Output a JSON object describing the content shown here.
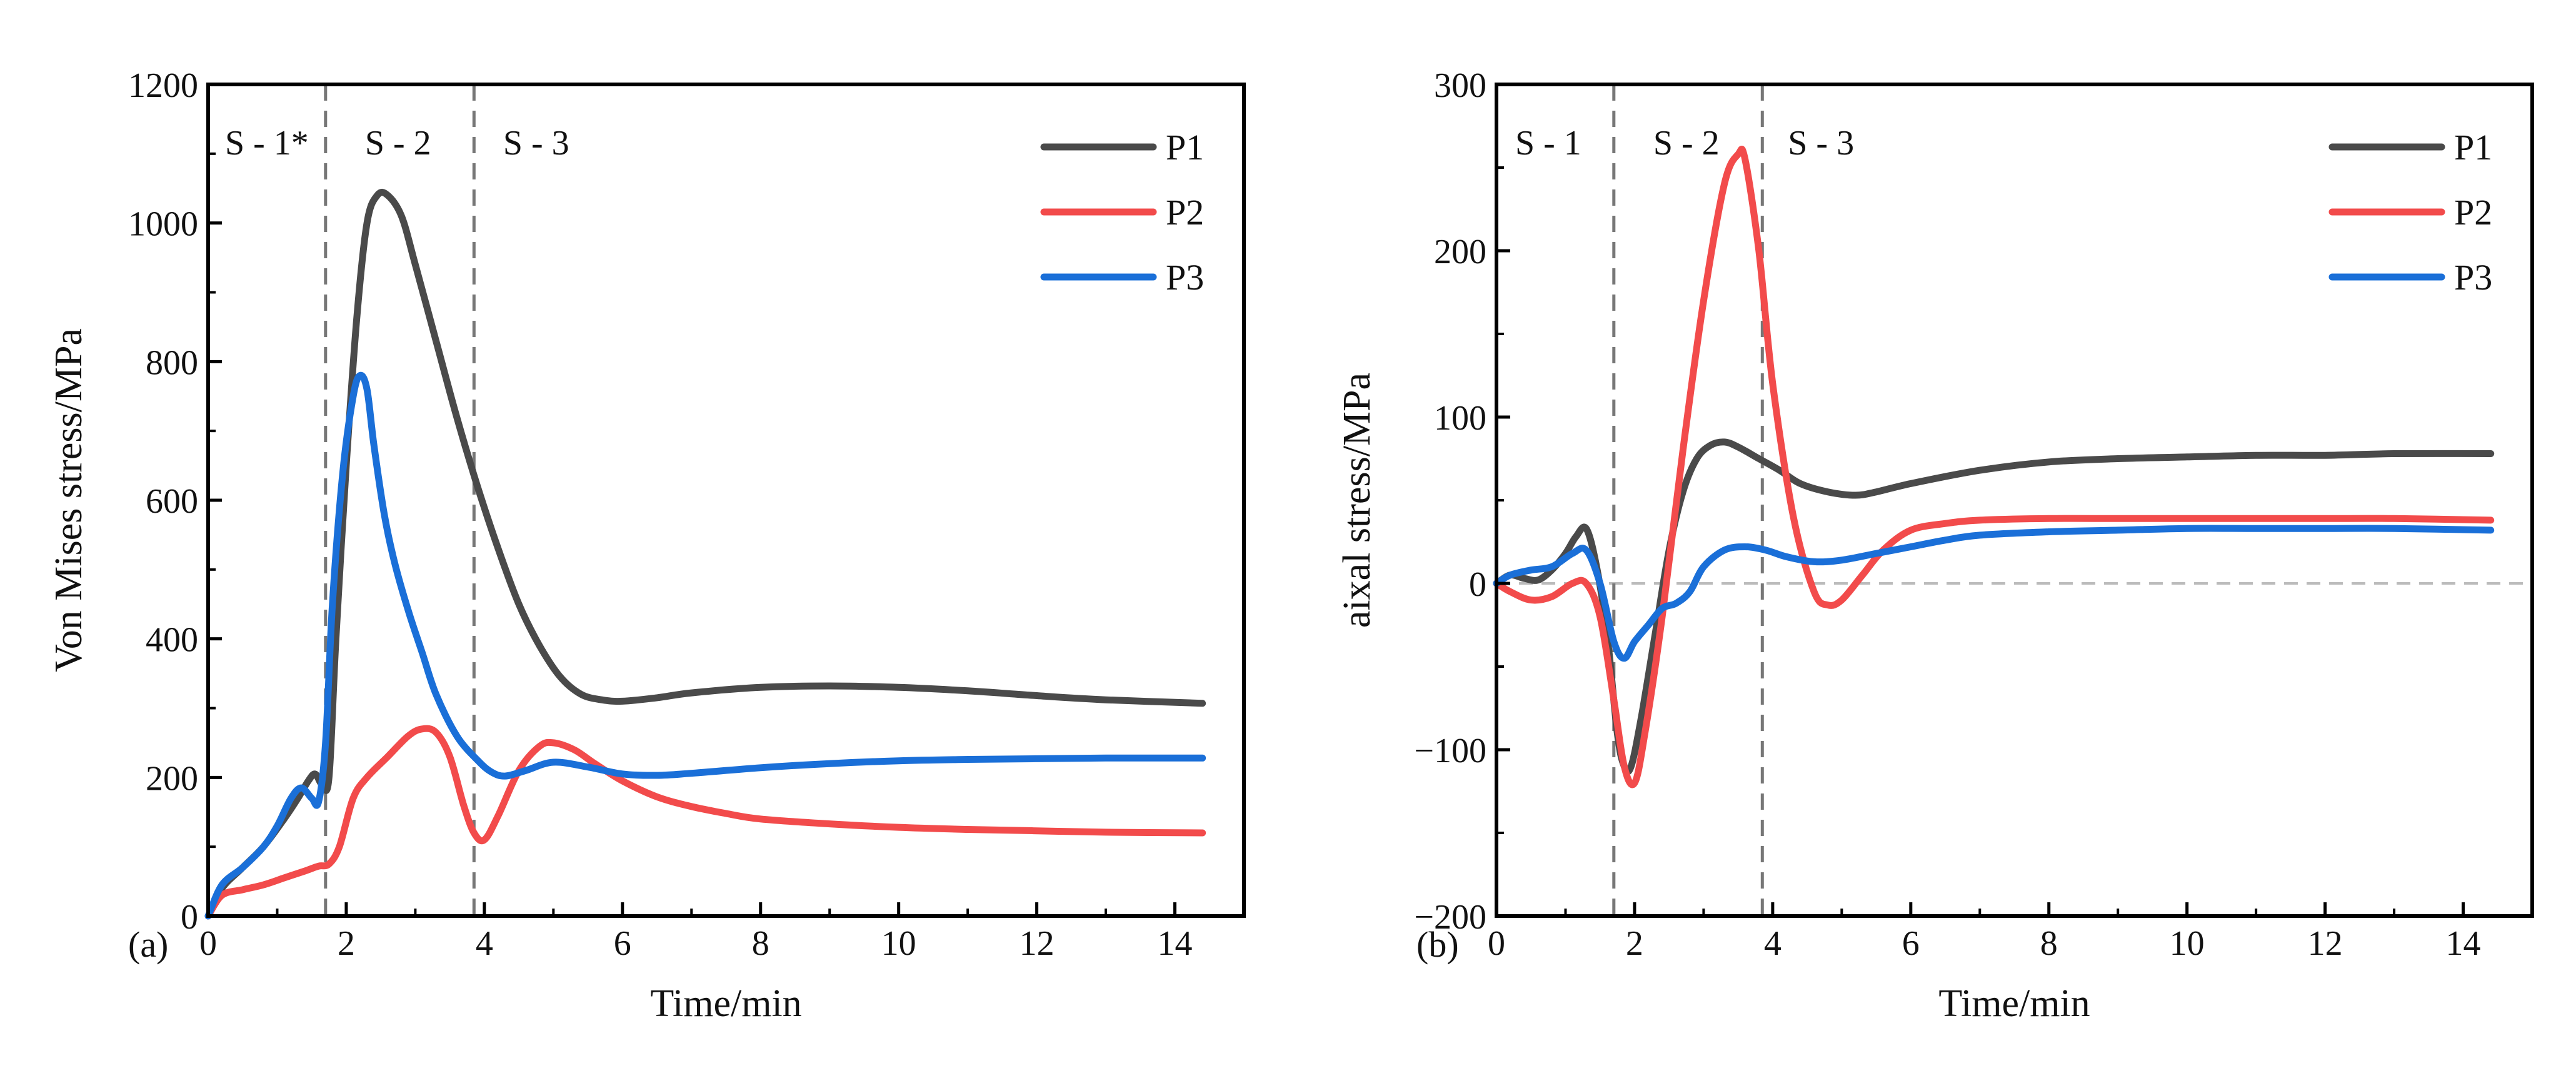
{
  "chart_data": [
    {
      "id": "chart-a",
      "panel_label": "(a)",
      "type": "line",
      "xlabel": "Time/min",
      "ylabel": "Von Mises stress/MPa",
      "xlim": [
        0,
        15
      ],
      "ylim": [
        0,
        1200
      ],
      "xticks": [
        0,
        2,
        4,
        6,
        8,
        10,
        12,
        14
      ],
      "yticks": [
        0,
        200,
        400,
        600,
        800,
        1000,
        1200
      ],
      "xtick_labels": [
        "0",
        "2",
        "4",
        "6",
        "8",
        "10",
        "12",
        "14"
      ],
      "ytick_labels": [
        "0",
        "200",
        "400",
        "600",
        "800",
        "1000",
        "1200"
      ],
      "stage_boundaries": [
        1.7,
        3.85
      ],
      "stage_labels": [
        {
          "text": "S - 1*",
          "x": 0.85
        },
        {
          "text": "S - 2",
          "x": 2.75
        },
        {
          "text": "S - 3",
          "x": 4.75
        }
      ],
      "zero_line": false,
      "legend": "top-right",
      "series": [
        {
          "name": "P1",
          "color": "#4a4a4a",
          "x": [
            0,
            0.2,
            0.5,
            0.8,
            1.1,
            1.3,
            1.45,
            1.55,
            1.65,
            1.75,
            1.85,
            2.0,
            2.15,
            2.3,
            2.45,
            2.6,
            2.8,
            3.0,
            3.3,
            3.6,
            3.9,
            4.2,
            4.5,
            4.8,
            5.1,
            5.4,
            5.7,
            6.0,
            6.5,
            7.0,
            8.0,
            9.0,
            10.0,
            11.0,
            12.0,
            13.0,
            14.4
          ],
          "y": [
            0,
            40,
            70,
            100,
            140,
            170,
            195,
            205,
            190,
            200,
            400,
            650,
            860,
            1000,
            1040,
            1040,
            1010,
            940,
            830,
            720,
            620,
            530,
            450,
            390,
            345,
            320,
            312,
            310,
            315,
            322,
            330,
            332,
            330,
            325,
            318,
            312,
            307
          ]
        },
        {
          "name": "P2",
          "color": "#f24b4b",
          "x": [
            0,
            0.2,
            0.5,
            0.8,
            1.1,
            1.4,
            1.6,
            1.75,
            1.9,
            2.1,
            2.3,
            2.6,
            2.9,
            3.1,
            3.3,
            3.5,
            3.7,
            3.85,
            4.0,
            4.2,
            4.5,
            4.8,
            5.0,
            5.3,
            5.6,
            6.0,
            6.5,
            7.0,
            7.5,
            8.0,
            9.0,
            10.0,
            11.0,
            12.0,
            13.0,
            14.4
          ],
          "y": [
            0,
            30,
            38,
            45,
            55,
            65,
            72,
            75,
            100,
            170,
            200,
            230,
            260,
            270,
            265,
            230,
            160,
            120,
            110,
            145,
            210,
            245,
            250,
            240,
            220,
            195,
            172,
            158,
            148,
            140,
            133,
            128,
            125,
            123,
            121,
            120
          ]
        },
        {
          "name": "P3",
          "color": "#1a6fd8",
          "x": [
            0,
            0.2,
            0.5,
            0.8,
            1.0,
            1.2,
            1.35,
            1.5,
            1.6,
            1.7,
            1.8,
            1.95,
            2.1,
            2.2,
            2.3,
            2.4,
            2.55,
            2.7,
            2.9,
            3.1,
            3.3,
            3.6,
            3.9,
            4.1,
            4.3,
            4.6,
            5.0,
            5.5,
            6.0,
            6.5,
            7.0,
            8.0,
            9.0,
            10.0,
            11.0,
            12.0,
            13.0,
            14.4
          ],
          "y": [
            0,
            45,
            70,
            100,
            130,
            170,
            185,
            170,
            165,
            250,
            450,
            640,
            750,
            780,
            760,
            680,
            580,
            510,
            440,
            380,
            320,
            260,
            225,
            208,
            202,
            210,
            222,
            215,
            205,
            203,
            206,
            214,
            220,
            224,
            226,
            227,
            228,
            228
          ]
        }
      ]
    },
    {
      "id": "chart-b",
      "panel_label": "(b)",
      "type": "line",
      "xlabel": "Time/min",
      "ylabel": "aixal stress/MPa",
      "xlim": [
        0,
        15
      ],
      "ylim": [
        -200,
        300
      ],
      "xticks": [
        0,
        2,
        4,
        6,
        8,
        10,
        12,
        14
      ],
      "yticks": [
        -200,
        -100,
        0,
        100,
        200,
        300
      ],
      "xtick_labels": [
        "0",
        "2",
        "4",
        "6",
        "8",
        "10",
        "12",
        "14"
      ],
      "ytick_labels": [
        "−200",
        "−100",
        "0",
        "100",
        "200",
        "300"
      ],
      "stage_boundaries": [
        1.7,
        3.85
      ],
      "stage_labels": [
        {
          "text": "S - 1",
          "x": 0.75
        },
        {
          "text": "S - 2",
          "x": 2.75
        },
        {
          "text": "S - 3",
          "x": 4.7
        }
      ],
      "zero_line": true,
      "legend": "top-right",
      "series": [
        {
          "name": "P1",
          "color": "#4a4a4a",
          "x": [
            0,
            0.2,
            0.4,
            0.6,
            0.8,
            1.0,
            1.15,
            1.3,
            1.45,
            1.6,
            1.75,
            1.85,
            1.95,
            2.1,
            2.3,
            2.5,
            2.7,
            2.9,
            3.1,
            3.3,
            3.5,
            3.8,
            4.1,
            4.4,
            4.8,
            5.2,
            5.5,
            6.0,
            7.0,
            8.0,
            9.0,
            10.0,
            11.0,
            12.0,
            13.0,
            14.4
          ],
          "y": [
            0,
            5,
            3,
            2,
            8,
            18,
            28,
            33,
            10,
            -30,
            -90,
            -110,
            -110,
            -80,
            -30,
            20,
            55,
            75,
            83,
            85,
            82,
            75,
            68,
            60,
            55,
            53,
            55,
            60,
            68,
            73,
            75,
            76,
            77,
            77,
            78,
            78
          ]
        },
        {
          "name": "P2",
          "color": "#f24b4b",
          "x": [
            0,
            0.2,
            0.5,
            0.8,
            1.1,
            1.3,
            1.5,
            1.7,
            1.85,
            2.0,
            2.15,
            2.4,
            2.7,
            3.0,
            3.3,
            3.5,
            3.6,
            3.8,
            4.0,
            4.3,
            4.6,
            4.8,
            5.0,
            5.3,
            5.6,
            6.0,
            6.5,
            7.0,
            8.0,
            9.0,
            10.0,
            11.0,
            12.0,
            13.0,
            14.4
          ],
          "y": [
            0,
            -5,
            -10,
            -8,
            0,
            0,
            -20,
            -70,
            -110,
            -120,
            -90,
            -20,
            80,
            170,
            240,
            258,
            255,
            200,
            120,
            40,
            -5,
            -13,
            -10,
            5,
            20,
            32,
            36,
            38,
            39,
            39,
            39,
            39,
            39,
            39,
            38
          ]
        },
        {
          "name": "P3",
          "color": "#1a6fd8",
          "x": [
            0,
            0.2,
            0.5,
            0.8,
            1.1,
            1.3,
            1.5,
            1.7,
            1.85,
            2.0,
            2.2,
            2.4,
            2.6,
            2.8,
            3.0,
            3.3,
            3.6,
            3.9,
            4.2,
            4.6,
            5.0,
            5.5,
            6.0,
            6.5,
            7.0,
            8.0,
            9.0,
            10.0,
            11.0,
            12.0,
            13.0,
            14.4
          ],
          "y": [
            0,
            5,
            8,
            10,
            18,
            20,
            0,
            -35,
            -45,
            -35,
            -25,
            -15,
            -12,
            -5,
            10,
            20,
            22,
            20,
            16,
            13,
            14,
            18,
            22,
            26,
            29,
            31,
            32,
            33,
            33,
            33,
            33,
            32
          ]
        }
      ]
    }
  ]
}
